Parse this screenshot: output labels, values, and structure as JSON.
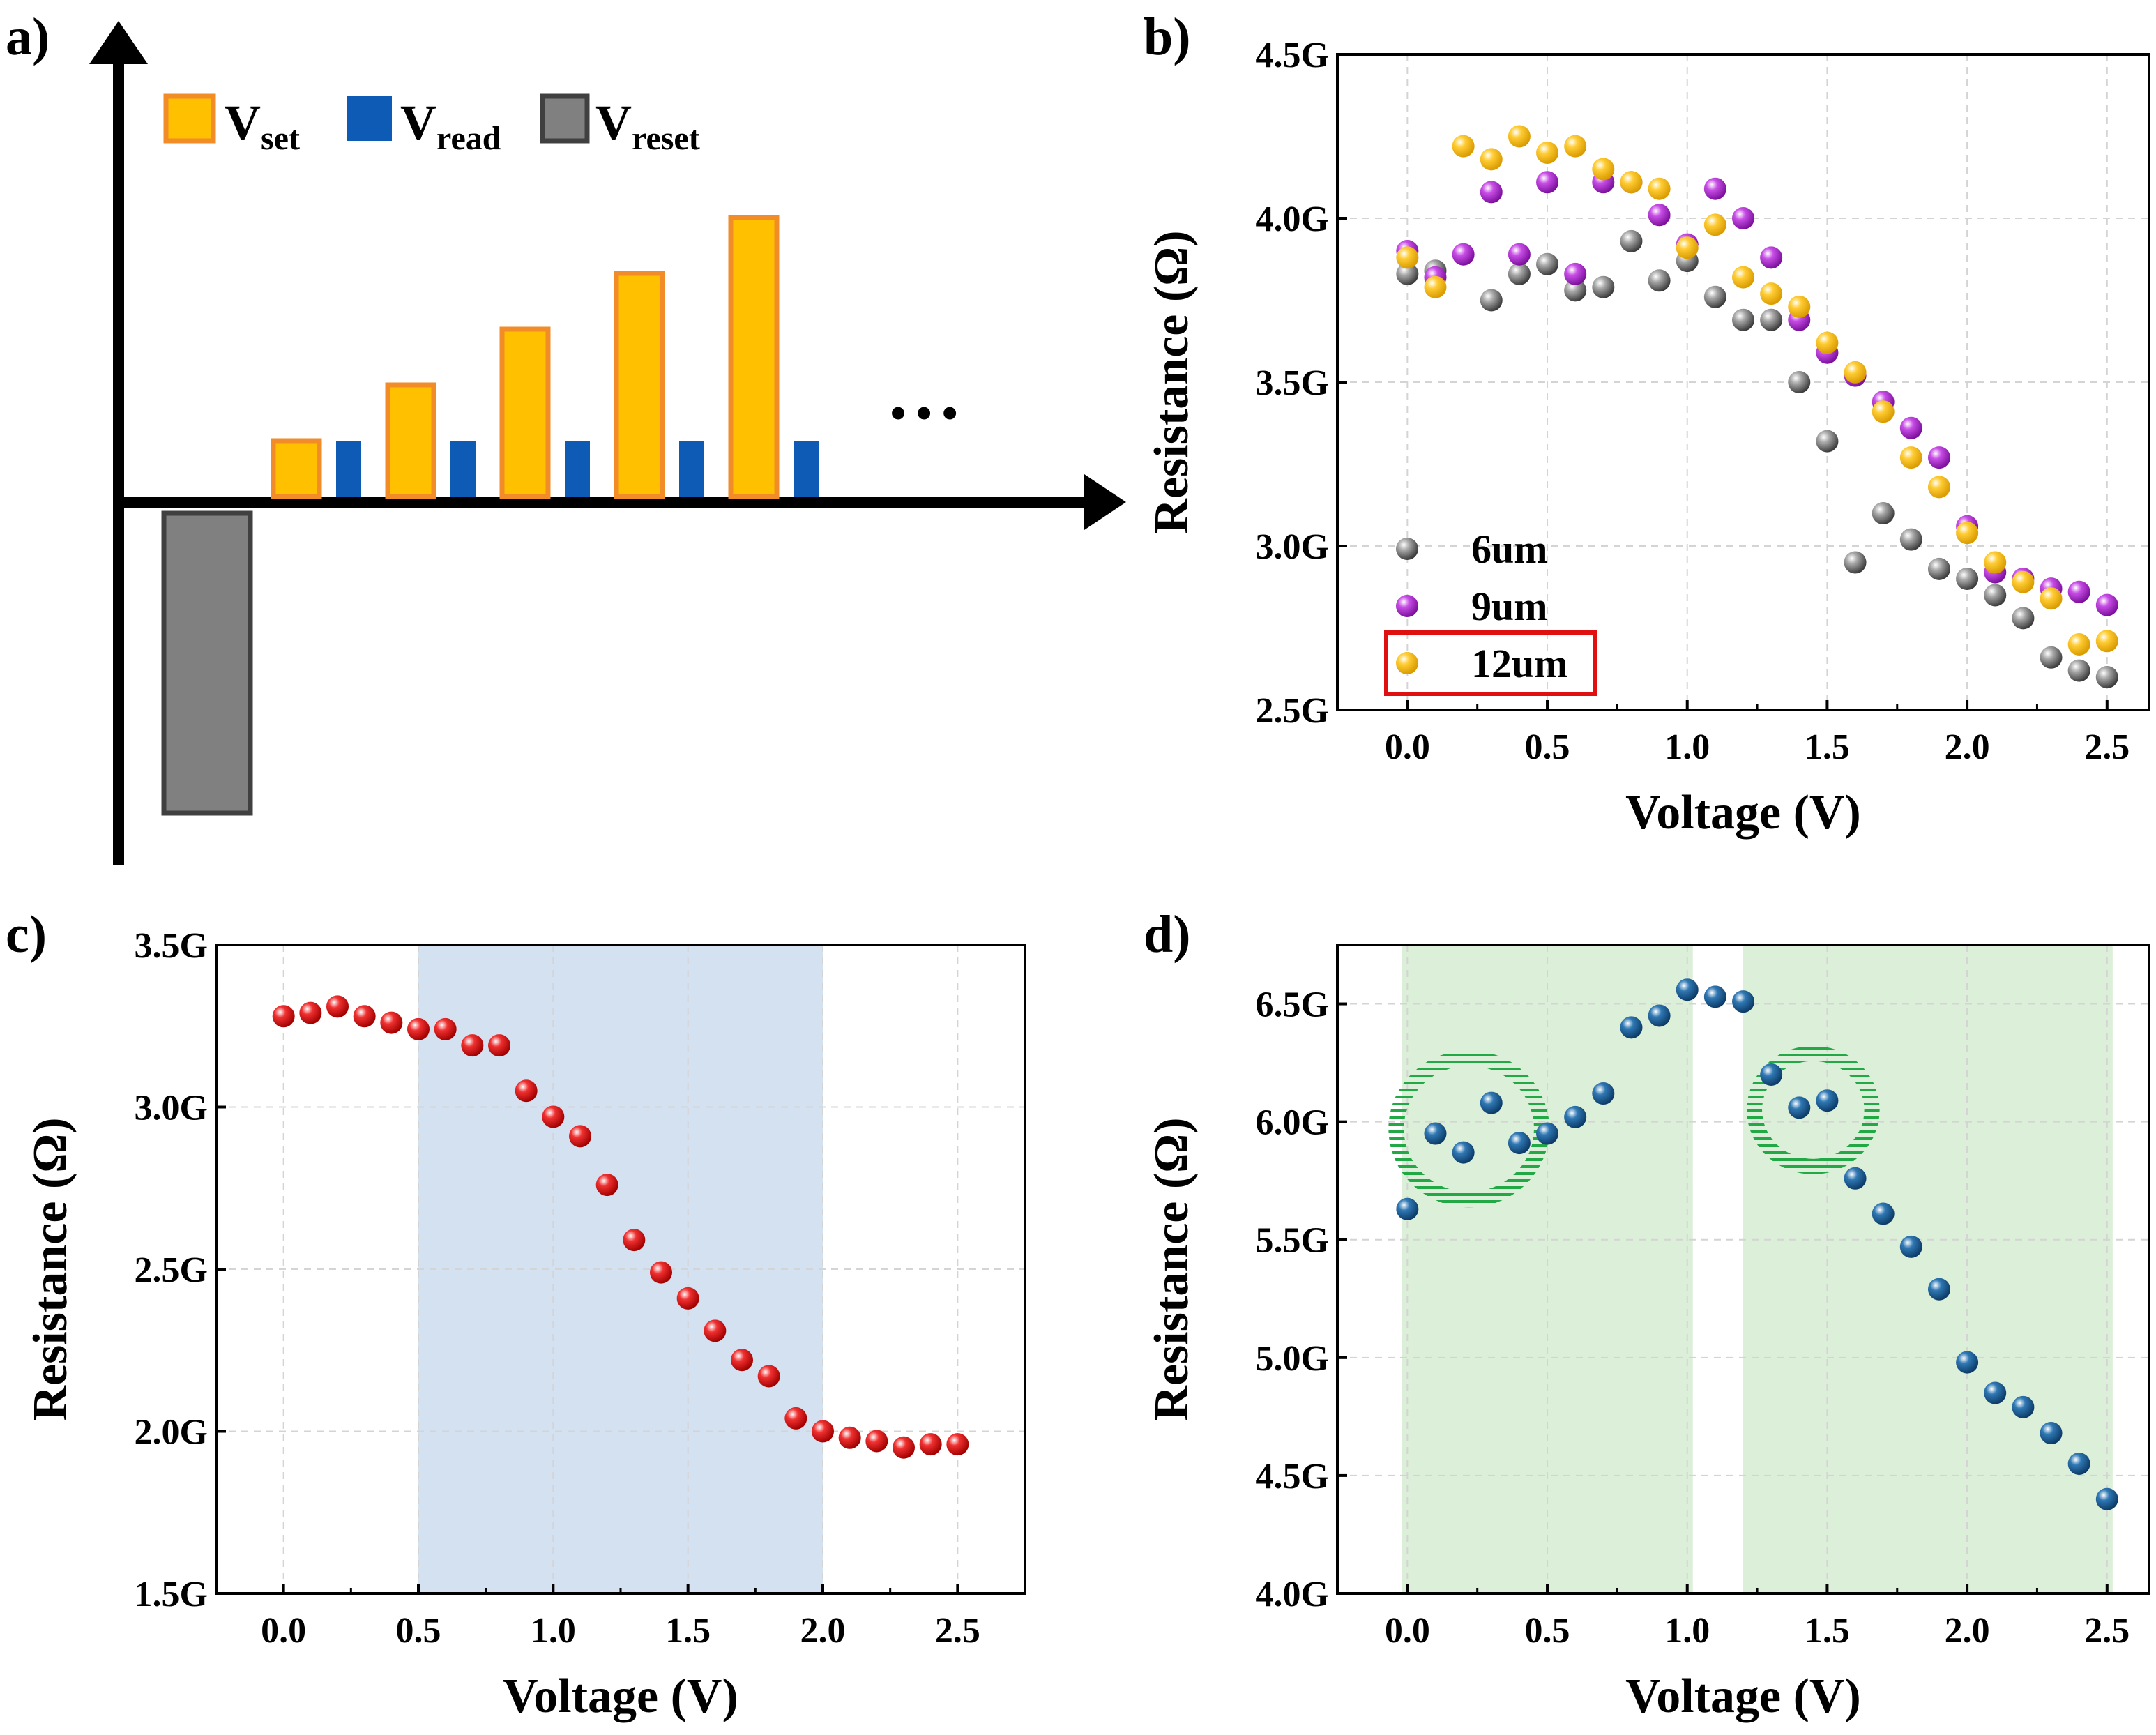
{
  "colors": {
    "set_fill": "#FFC000",
    "set_stroke": "#F28C28",
    "read_fill": "#0E5BB5",
    "reset_fill": "#808080",
    "reset_stroke": "#404040",
    "gray_pt": "#707070",
    "purple_pt": "#B020D0",
    "yellow_pt": "#F5BE10",
    "red_pt": "#E01010",
    "blue_pt": "#1A5A8E",
    "band_blue": "#D3E1F1",
    "band_green": "#DCEFD8",
    "circle_green": "#22A844",
    "legend_box": "#E01010",
    "grid": "#D4D4D4"
  },
  "panels": {
    "a": {
      "label": "a)",
      "legend": [
        {
          "main": "V",
          "sub": "set",
          "key": "set"
        },
        {
          "main": "V",
          "sub": "read",
          "key": "read"
        },
        {
          "main": "V",
          "sub": "reset",
          "key": "reset"
        }
      ],
      "ellipsis": "…",
      "pulses": {
        "reset": -0.43,
        "set": [
          0.08,
          0.16,
          0.24,
          0.32,
          0.4
        ],
        "read": 0.08
      }
    },
    "b": {
      "label": "b)"
    },
    "c": {
      "label": "c)"
    },
    "d": {
      "label": "d)"
    }
  },
  "chart_data": [
    {
      "panel": "b",
      "type": "scatter",
      "xlabel": "Voltage (V)",
      "ylabel": "Resistance (Ω)",
      "xlim": [
        -0.25,
        2.65
      ],
      "ylim": [
        2.5,
        4.5
      ],
      "xticks": [
        0.0,
        0.5,
        1.0,
        1.5,
        2.0,
        2.5
      ],
      "xtick_labels": [
        "0.0",
        "0.5",
        "1.0",
        "1.5",
        "2.0",
        "2.5"
      ],
      "yticks": [
        2.5,
        3.0,
        3.5,
        4.0,
        4.5
      ],
      "ytick_labels": [
        "2.5G",
        "3.0G",
        "3.5G",
        "4.0G",
        "4.5G"
      ],
      "legend_position": "bottom-left",
      "highlighted_legend_entry": "12um",
      "series": [
        {
          "name": "6um",
          "color": "#707070",
          "x": [
            0.0,
            0.1,
            0.3,
            0.4,
            0.5,
            0.6,
            0.7,
            0.8,
            0.9,
            1.0,
            1.1,
            1.2,
            1.3,
            1.4,
            1.5,
            1.6,
            1.7,
            1.8,
            1.9,
            2.0,
            2.1,
            2.2,
            2.3,
            2.4,
            2.5
          ],
          "y": [
            3.83,
            3.84,
            3.75,
            3.83,
            3.86,
            3.78,
            3.79,
            3.93,
            3.81,
            3.87,
            3.76,
            3.69,
            3.69,
            3.5,
            3.32,
            2.95,
            3.1,
            3.02,
            2.93,
            2.9,
            2.85,
            2.78,
            2.66,
            2.62,
            2.6
          ]
        },
        {
          "name": "9um",
          "color": "#B020D0",
          "x": [
            0.0,
            0.1,
            0.2,
            0.3,
            0.4,
            0.5,
            0.6,
            0.7,
            0.8,
            0.9,
            1.0,
            1.1,
            1.2,
            1.3,
            1.4,
            1.5,
            1.6,
            1.7,
            1.8,
            1.9,
            2.0,
            2.1,
            2.2,
            2.3,
            2.4,
            2.5
          ],
          "y": [
            3.9,
            3.82,
            3.89,
            4.08,
            3.89,
            4.11,
            3.83,
            4.11,
            4.11,
            4.01,
            3.92,
            4.09,
            4.0,
            3.88,
            3.69,
            3.59,
            3.52,
            3.44,
            3.36,
            3.27,
            3.06,
            2.92,
            2.9,
            2.87,
            2.86,
            2.82
          ]
        },
        {
          "name": "12um",
          "color": "#F5BE10",
          "x": [
            0.0,
            0.1,
            0.2,
            0.3,
            0.4,
            0.5,
            0.6,
            0.7,
            0.8,
            0.9,
            1.0,
            1.1,
            1.2,
            1.3,
            1.4,
            1.5,
            1.6,
            1.7,
            1.8,
            1.9,
            2.0,
            2.1,
            2.2,
            2.3,
            2.4,
            2.5
          ],
          "y": [
            3.88,
            3.79,
            4.22,
            4.18,
            4.25,
            4.2,
            4.22,
            4.15,
            4.11,
            4.09,
            3.91,
            3.98,
            3.82,
            3.77,
            3.73,
            3.62,
            3.53,
            3.41,
            3.27,
            3.18,
            3.04,
            2.95,
            2.89,
            2.84,
            2.7,
            2.71
          ]
        }
      ]
    },
    {
      "panel": "c",
      "type": "scatter",
      "xlabel": "Voltage (V)",
      "ylabel": "Resistance (Ω)",
      "xlim": [
        -0.25,
        2.75
      ],
      "ylim": [
        1.5,
        3.5
      ],
      "xticks": [
        0.0,
        0.5,
        1.0,
        1.5,
        2.0,
        2.5
      ],
      "xtick_labels": [
        "0.0",
        "0.5",
        "1.0",
        "1.5",
        "2.0",
        "2.5"
      ],
      "yticks": [
        1.5,
        2.0,
        2.5,
        3.0,
        3.5
      ],
      "ytick_labels": [
        "1.5G",
        "2.0G",
        "2.5G",
        "3.0G",
        "3.5G"
      ],
      "shaded_ranges": [
        [
          0.5,
          2.0
        ]
      ],
      "series": [
        {
          "name": "resistance",
          "color": "#E01010",
          "x": [
            0.0,
            0.1,
            0.2,
            0.3,
            0.4,
            0.5,
            0.6,
            0.7,
            0.8,
            0.9,
            1.0,
            1.1,
            1.2,
            1.3,
            1.4,
            1.5,
            1.6,
            1.7,
            1.8,
            1.9,
            2.0,
            2.1,
            2.2,
            2.3,
            2.4,
            2.5
          ],
          "y": [
            3.28,
            3.29,
            3.31,
            3.28,
            3.26,
            3.24,
            3.24,
            3.19,
            3.19,
            3.05,
            2.97,
            2.91,
            2.76,
            2.59,
            2.49,
            2.41,
            2.31,
            2.22,
            2.17,
            2.04,
            2.0,
            1.98,
            1.97,
            1.95,
            1.96,
            1.96
          ]
        }
      ]
    },
    {
      "panel": "d",
      "type": "scatter",
      "xlabel": "Voltage (V)",
      "ylabel": "Resistance (Ω)",
      "xlim": [
        -0.25,
        2.65
      ],
      "ylim": [
        4.0,
        6.75
      ],
      "xticks": [
        0.0,
        0.5,
        1.0,
        1.5,
        2.0,
        2.5
      ],
      "xtick_labels": [
        "0.0",
        "0.5",
        "1.0",
        "1.5",
        "2.0",
        "2.5"
      ],
      "yticks": [
        4.0,
        4.5,
        5.0,
        5.5,
        6.0,
        6.5
      ],
      "ytick_labels": [
        "4.0G",
        "4.5G",
        "5.0G",
        "5.5G",
        "6.0G",
        "6.5G"
      ],
      "shaded_ranges": [
        [
          -0.02,
          1.02
        ],
        [
          1.2,
          2.52
        ]
      ],
      "highlight_circles": [
        {
          "cx": 0.22,
          "cy": 5.97,
          "rx": 0.26,
          "ry": 0.3
        },
        {
          "cx": 1.45,
          "cy": 6.05,
          "rx": 0.21,
          "ry": 0.24
        }
      ],
      "series": [
        {
          "name": "resistance",
          "color": "#1A5A8E",
          "x": [
            0.0,
            0.1,
            0.2,
            0.3,
            0.4,
            0.5,
            0.6,
            0.7,
            0.8,
            0.9,
            1.0,
            1.1,
            1.2,
            1.3,
            1.4,
            1.5,
            1.6,
            1.7,
            1.8,
            1.9,
            2.0,
            2.1,
            2.2,
            2.3,
            2.4,
            2.5
          ],
          "y": [
            5.63,
            5.95,
            5.87,
            6.08,
            5.91,
            5.95,
            6.02,
            6.12,
            6.4,
            6.45,
            6.56,
            6.53,
            6.51,
            6.2,
            6.06,
            6.09,
            5.76,
            5.61,
            5.47,
            5.29,
            4.98,
            4.85,
            4.79,
            4.68,
            4.55,
            4.4
          ]
        }
      ]
    }
  ]
}
